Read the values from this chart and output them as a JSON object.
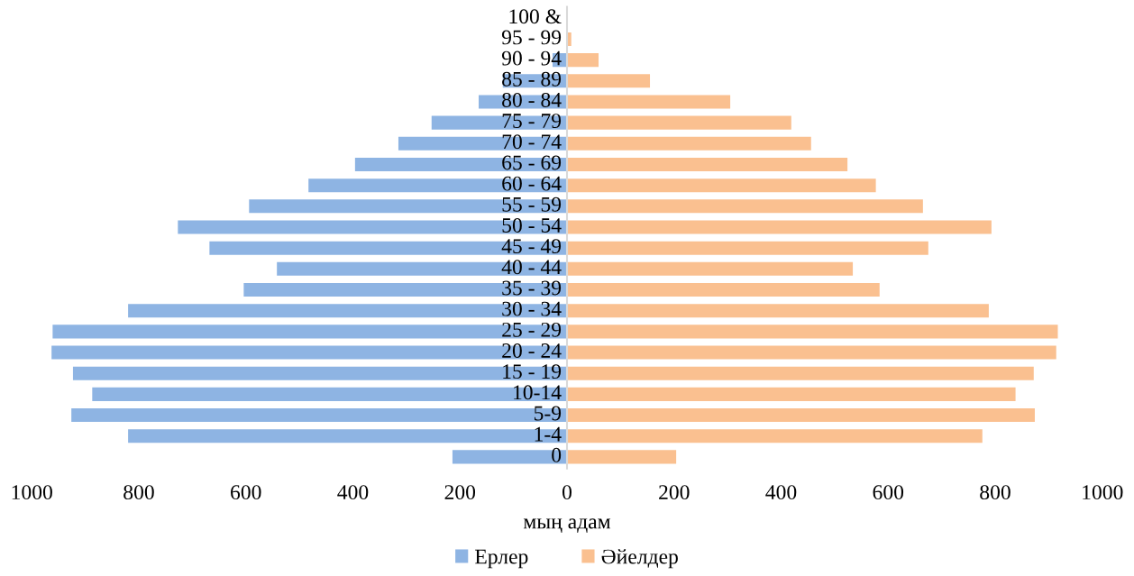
{
  "chart_data": {
    "type": "bar",
    "orientation": "horizontal",
    "stacked": true,
    "categories": [
      "100 &",
      "95 - 99",
      "90 - 94",
      "85 - 89",
      "80 - 84",
      "75 - 79",
      "70 - 74",
      "65 - 69",
      "60 - 64",
      "55 - 59",
      "50 - 54",
      "45 - 49",
      "40 - 44",
      "35 - 39",
      "30 - 34",
      "25 - 29",
      "20 - 24",
      "15 - 19",
      "10-14",
      "5-9",
      "1-4",
      "0"
    ],
    "series": [
      {
        "name": "Ерлер",
        "color": "#8eb4e3",
        "values": [
          0,
          null,
          -27,
          -120,
          -165,
          -253,
          -315,
          -396,
          -483,
          -594,
          -727,
          -668,
          -542,
          -604,
          -820,
          -961,
          -963,
          -923,
          -887,
          -926,
          -820,
          -214
        ]
      },
      {
        "name": "Әйелдер",
        "color": "#fac090",
        "values": [
          0,
          8,
          59,
          155,
          305,
          419,
          456,
          524,
          577,
          665,
          793,
          675,
          534,
          584,
          788,
          917,
          914,
          872,
          838,
          874,
          776,
          204
        ]
      }
    ],
    "xlabel": "мың адам",
    "xlim": [
      -1000,
      1000
    ],
    "xticks": [
      {
        "value": -1000,
        "label": "1000"
      },
      {
        "value": -800,
        "label": "800"
      },
      {
        "value": -600,
        "label": "600"
      },
      {
        "value": -400,
        "label": "400"
      },
      {
        "value": -200,
        "label": "200"
      },
      0,
      200,
      400,
      600,
      800,
      1000
    ],
    "legend": "bottom",
    "grid": false
  }
}
